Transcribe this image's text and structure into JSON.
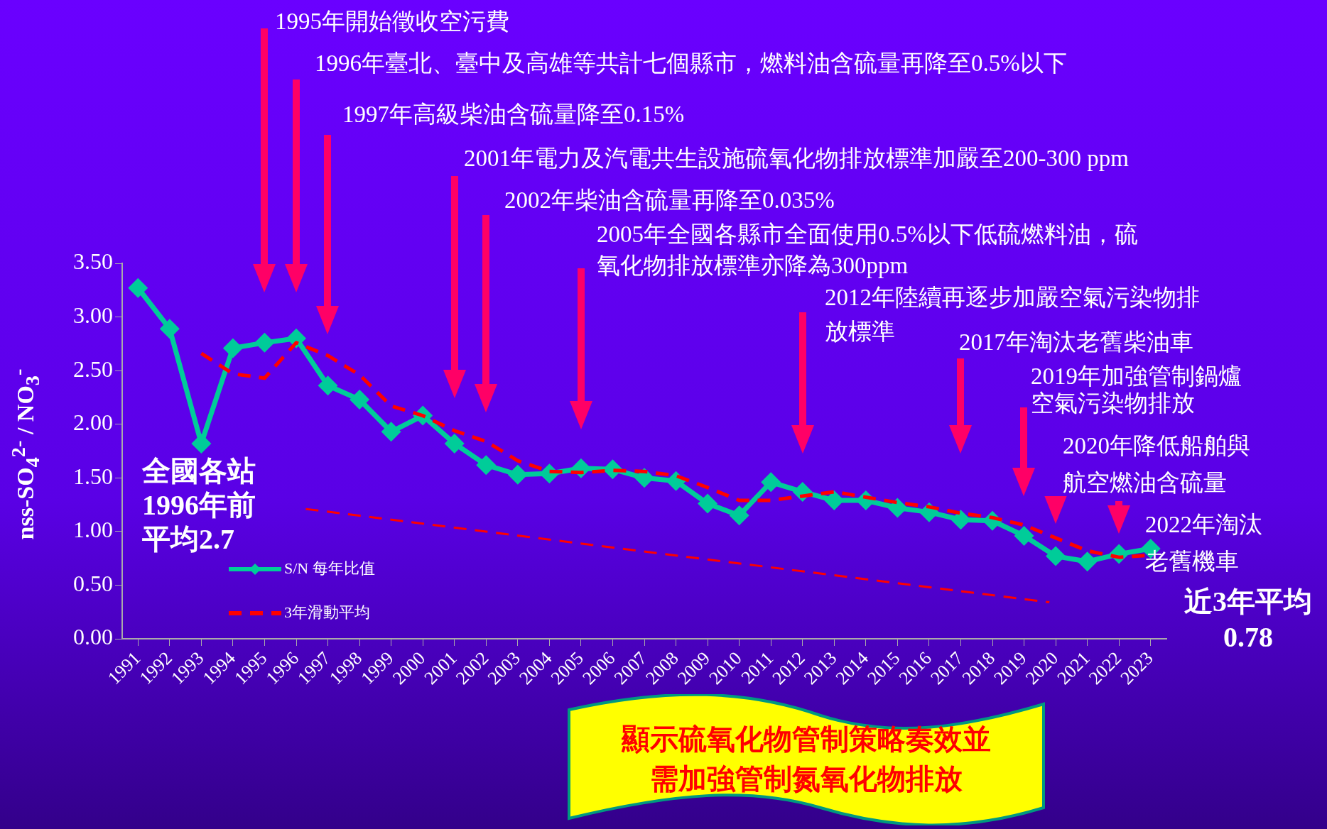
{
  "chart_data": {
    "type": "line",
    "ylabel": "nss-SO$_{4}$$^{2-}$ / NO$_{3}$$^{-}$",
    "x": [
      1991,
      1992,
      1993,
      1994,
      1995,
      1996,
      1997,
      1998,
      1999,
      2000,
      2001,
      2002,
      2003,
      2004,
      2005,
      2006,
      2007,
      2008,
      2009,
      2010,
      2011,
      2012,
      2013,
      2014,
      2015,
      2016,
      2017,
      2018,
      2019,
      2020,
      2021,
      2022,
      2023
    ],
    "xlim": [
      1990.5,
      2023.5
    ],
    "xticks": [
      1991,
      1992,
      1993,
      1994,
      1995,
      1996,
      1997,
      1998,
      1999,
      2000,
      2001,
      2002,
      2003,
      2004,
      2005,
      2006,
      2007,
      2008,
      2009,
      2010,
      2011,
      2012,
      2013,
      2014,
      2015,
      2016,
      2017,
      2018,
      2019,
      2020,
      2021,
      2022,
      2023
    ],
    "ylim": [
      0,
      3.5
    ],
    "yticks": [
      {
        "value": 0,
        "label": "0.00"
      },
      {
        "value": 0.5,
        "label": "0.50"
      },
      {
        "value": 1,
        "label": "1.00"
      },
      {
        "value": 1.5,
        "label": "1.50"
      },
      {
        "value": 2,
        "label": "2.00"
      },
      {
        "value": 2.5,
        "label": "2.50"
      },
      {
        "value": 3,
        "label": "3.00"
      },
      {
        "value": 3.5,
        "label": "3.50"
      }
    ],
    "legend": "bottom left",
    "series": [
      {
        "name": "S/N 每年比值",
        "color": "#00cc99",
        "marker": "diamond",
        "line_style": "solid",
        "values": [
          3.27,
          2.89,
          1.82,
          2.71,
          2.76,
          2.8,
          2.36,
          2.23,
          1.93,
          2.08,
          1.82,
          1.62,
          1.53,
          1.54,
          1.59,
          1.58,
          1.5,
          1.47,
          1.26,
          1.15,
          1.46,
          1.37,
          1.29,
          1.29,
          1.22,
          1.18,
          1.11,
          1.1,
          0.96,
          0.77,
          0.72,
          0.79,
          0.84
        ]
      },
      {
        "name": "3年滑動平均",
        "color": "#ff0000",
        "marker": "none",
        "line_style": "dashed",
        "values": [
          null,
          null,
          2.66,
          2.47,
          2.43,
          2.76,
          2.64,
          2.46,
          2.17,
          2.08,
          1.94,
          1.84,
          1.66,
          1.56,
          1.55,
          1.57,
          1.56,
          1.52,
          1.41,
          1.29,
          1.29,
          1.33,
          1.37,
          1.32,
          1.27,
          1.23,
          1.17,
          1.13,
          1.06,
          0.94,
          0.82,
          0.76,
          0.78
        ]
      },
      {
        "type": "line",
        "color": "#ff0000",
        "marker": "none",
        "line_style": "dashed",
        "x": [
          1996.3,
          2019.8
        ],
        "values": [
          1.21,
          0.34
        ]
      }
    ],
    "annotations": [
      "1995年開始徵收空污費",
      "1996年臺北、臺中及高雄等共計七個縣市，燃料油含硫量再降至0.5%以下",
      "1997年高級柴油含硫量降至0.15%",
      "2001年電力及汽電共生設施硫氧化物排放標準加嚴至200-300 ppm",
      "2002年柴油含硫量再降至0.035%",
      "2005年全國各縣市全面使用0.5%以下低硫燃料油，硫氧化物排放標準亦降為300ppm",
      "2012年陸續再逐步加嚴空氣污染物排放標準",
      "2017年淘汰老舊柴油車",
      "2019年加強管制鍋爐空氣污染物排放",
      "2020年降低船舶與航空燃油含硫量",
      "2022年淘汰老舊機車",
      "全國各站1996年前平均2.7",
      "近3年平均\n0.78",
      "顯示硫氧化物管制策略奏效並需加強管制氮氧化物排放"
    ]
  }
}
